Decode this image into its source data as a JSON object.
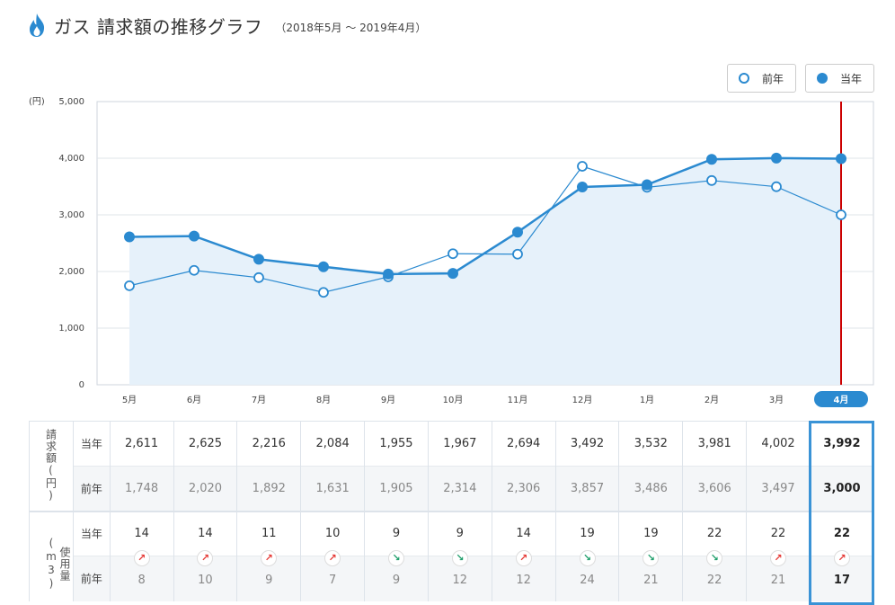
{
  "header": {
    "title": "ガス 請求額の推移グラフ",
    "subtitle": "（2018年5月 ～ 2019年4月）",
    "icon": "flame-icon"
  },
  "legend": {
    "prev_label": "前年",
    "cur_label": "当年"
  },
  "colors": {
    "accent": "#2b8ad0",
    "fill": "#e6f1fa",
    "marker_line": "#cc0000",
    "up_arrow": "#e53935",
    "down_arrow": "#1e9e6a"
  },
  "chart_data": {
    "type": "line",
    "yunit": "(円)",
    "ylim": [
      0,
      5000
    ],
    "yticks": [
      "0",
      "1,000",
      "2,000",
      "3,000",
      "4,000",
      "5,000"
    ],
    "categories": [
      "5月",
      "6月",
      "7月",
      "8月",
      "9月",
      "10月",
      "11月",
      "12月",
      "1月",
      "2月",
      "3月",
      "4月"
    ],
    "highlight_index": 11,
    "grid": true,
    "series": [
      {
        "name": "当年",
        "values": [
          2611,
          2625,
          2216,
          2084,
          1955,
          1967,
          2694,
          3492,
          3532,
          3981,
          4002,
          3992
        ]
      },
      {
        "name": "前年",
        "values": [
          1748,
          2020,
          1892,
          1631,
          1905,
          2314,
          2306,
          3857,
          3486,
          3606,
          3497,
          3000
        ]
      }
    ]
  },
  "table": {
    "billing_group": "請求額(円)",
    "usage_group": "使用量(m3)",
    "cur_label": "当年",
    "prev_label": "前年",
    "billing_cur": [
      "2,611",
      "2,625",
      "2,216",
      "2,084",
      "1,955",
      "1,967",
      "2,694",
      "3,492",
      "3,532",
      "3,981",
      "4,002",
      "3,992"
    ],
    "billing_prev": [
      "1,748",
      "2,020",
      "1,892",
      "1,631",
      "1,905",
      "2,314",
      "2,306",
      "3,857",
      "3,486",
      "3,606",
      "3,497",
      "3,000"
    ],
    "usage_cur": [
      "14",
      "14",
      "11",
      "10",
      "9",
      "9",
      "14",
      "19",
      "19",
      "22",
      "22",
      "22"
    ],
    "usage_prev": [
      "8",
      "10",
      "9",
      "7",
      "9",
      "12",
      "12",
      "24",
      "21",
      "22",
      "21",
      "17"
    ],
    "usage_trend": [
      "up",
      "up",
      "up",
      "up",
      "down",
      "down",
      "up",
      "down",
      "down",
      "down",
      "up",
      "up"
    ]
  }
}
